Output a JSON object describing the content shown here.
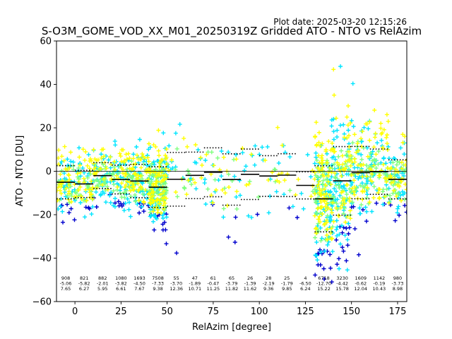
{
  "chart_data": {
    "type": "scatter",
    "title": "S-O3M_GOME_VOD_XX_M01_20250319Z Gridded ATO - NTO vs RelAzim",
    "plot_date": "Plot date: 2025-03-20 12:15:26",
    "xlabel": "RelAzim [degree]",
    "ylabel": "ATO - NTO [DU]",
    "xlim": [
      -10,
      180
    ],
    "ylim": [
      -60,
      60
    ],
    "xticks": [
      "0",
      "25",
      "50",
      "75",
      "100",
      "125",
      "150",
      "175"
    ],
    "yticks": [
      "60",
      "40",
      "20",
      "0",
      "−20",
      "−40",
      "−60"
    ],
    "grid": false,
    "marker": "plus",
    "colormap": [
      "#0000cd",
      "#00e5ff",
      "#7fff7f",
      "#ffff00"
    ],
    "bins": [
      {
        "x_start": -10,
        "x_end": 0,
        "count": "908",
        "mean": "-5.06",
        "std": "7.65",
        "mean_val": -5.06,
        "std_val": 7.65
      },
      {
        "x_start": 0,
        "x_end": 10,
        "count": "821",
        "mean": "-5.82",
        "std": "6.27",
        "mean_val": -5.82,
        "std_val": 6.27
      },
      {
        "x_start": 10,
        "x_end": 20,
        "count": "882",
        "mean": "-2.01",
        "std": "5.95",
        "mean_val": -2.01,
        "std_val": 5.95
      },
      {
        "x_start": 20,
        "x_end": 30,
        "count": "1080",
        "mean": "-3.82",
        "std": "6.61",
        "mean_val": -3.82,
        "std_val": 6.61
      },
      {
        "x_start": 30,
        "x_end": 40,
        "count": "1693",
        "mean": "-4.50",
        "std": "7.67",
        "mean_val": -4.5,
        "std_val": 7.67
      },
      {
        "x_start": 40,
        "x_end": 50,
        "count": "7508",
        "mean": "-7.33",
        "std": "9.38",
        "mean_val": -7.33,
        "std_val": 9.38
      },
      {
        "x_start": 50,
        "x_end": 60,
        "count": "55",
        "mean": "-3.70",
        "std": "12.36",
        "mean_val": -3.7,
        "std_val": 12.36
      },
      {
        "x_start": 60,
        "x_end": 70,
        "count": "47",
        "mean": "-1.89",
        "std": "10.71",
        "mean_val": -1.89,
        "std_val": 10.71
      },
      {
        "x_start": 70,
        "x_end": 80,
        "count": "61",
        "mean": "-0.47",
        "std": "11.25",
        "mean_val": -0.47,
        "std_val": 11.25
      },
      {
        "x_start": 80,
        "x_end": 90,
        "count": "65",
        "mean": "-3.79",
        "std": "11.82",
        "mean_val": -3.79,
        "std_val": 11.82
      },
      {
        "x_start": 90,
        "x_end": 100,
        "count": "26",
        "mean": "-1.39",
        "std": "11.62",
        "mean_val": -1.39,
        "std_val": 11.62
      },
      {
        "x_start": 100,
        "x_end": 110,
        "count": "28",
        "mean": "-2.19",
        "std": "9.36",
        "mean_val": -2.19,
        "std_val": 9.36
      },
      {
        "x_start": 110,
        "x_end": 120,
        "count": "25",
        "mean": "-1.79",
        "std": "9.85",
        "mean_val": -1.79,
        "std_val": 9.85
      },
      {
        "x_start": 120,
        "x_end": 130,
        "count": "4",
        "mean": "-6.50",
        "std": "6.24",
        "mean_val": -6.5,
        "std_val": 6.24
      },
      {
        "x_start": 130,
        "x_end": 140,
        "count": "6718",
        "mean": "-12.70",
        "std": "15.22",
        "mean_val": -12.7,
        "std_val": 15.22
      },
      {
        "x_start": 140,
        "x_end": 150,
        "count": "3230",
        "mean": "-4.42",
        "std": "15.78",
        "mean_val": -4.42,
        "std_val": 15.78
      },
      {
        "x_start": 150,
        "x_end": 160,
        "count": "1609",
        "mean": "-0.62",
        "std": "12.04",
        "mean_val": -0.62,
        "std_val": 12.04
      },
      {
        "x_start": 160,
        "x_end": 170,
        "count": "1142",
        "mean": "-0.19",
        "std": "10.43",
        "mean_val": -0.19,
        "std_val": 10.43
      },
      {
        "x_start": 170,
        "x_end": 180,
        "count": "980",
        "mean": "-3.73",
        "std": "8.98",
        "mean_val": -3.73,
        "std_val": 8.98
      }
    ]
  }
}
